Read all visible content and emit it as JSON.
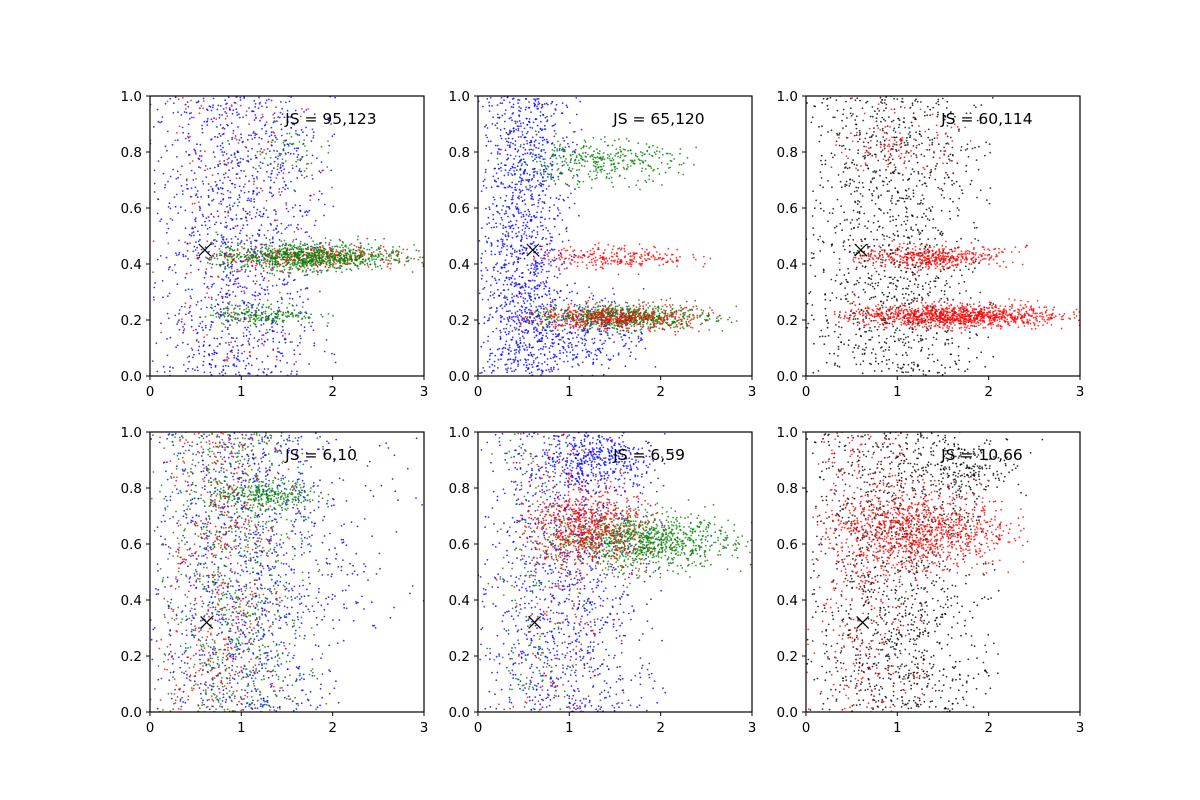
{
  "chart_data": [
    {
      "type": "scatter",
      "annotation": "JS = 95,123",
      "xlim": [
        0,
        3
      ],
      "ylim": [
        0,
        1
      ],
      "xticks": [
        "0",
        "1",
        "2",
        "3"
      ],
      "yticks": [
        "0.0",
        "0.2",
        "0.4",
        "0.6",
        "0.8",
        "1.0"
      ],
      "grid": false,
      "marker": {
        "x": 0.6,
        "y": 0.45
      },
      "series": [
        {
          "color": "#0000ff",
          "clusters": [
            {
              "x": [
                0.0,
                1.9
              ],
              "y": [
                0.0,
                1.0
              ],
              "n": 1300
            }
          ]
        },
        {
          "color": "#ff0000",
          "clusters": [
            {
              "x": [
                0.6,
                2.9
              ],
              "y": [
                0.38,
                0.47
              ],
              "n": 300
            },
            {
              "x": [
                0.1,
                1.9
              ],
              "y": [
                0.05,
                1.0
              ],
              "n": 200
            }
          ]
        },
        {
          "color": "#008000",
          "clusters": [
            {
              "x": [
                0.6,
                2.9
              ],
              "y": [
                0.37,
                0.48
              ],
              "n": 900
            },
            {
              "x": [
                0.6,
                1.9
              ],
              "y": [
                0.18,
                0.26
              ],
              "n": 200
            },
            {
              "x": [
                1.0,
                1.9
              ],
              "y": [
                0.7,
                0.9
              ],
              "n": 60
            }
          ]
        }
      ]
    },
    {
      "type": "scatter",
      "annotation": "JS = 65,120",
      "xlim": [
        0,
        3
      ],
      "ylim": [
        0,
        1
      ],
      "xticks": [
        "0",
        "1",
        "2",
        "3"
      ],
      "yticks": [
        "0.0",
        "0.2",
        "0.4",
        "0.6",
        "0.8",
        "1.0"
      ],
      "grid": false,
      "marker": {
        "x": 0.6,
        "y": 0.45
      },
      "series": [
        {
          "color": "#0000ff",
          "clusters": [
            {
              "x": [
                0.0,
                1.0
              ],
              "y": [
                0.0,
                1.0
              ],
              "n": 1400
            },
            {
              "x": [
                0.6,
                1.9
              ],
              "y": [
                0.0,
                0.3
              ],
              "n": 250
            }
          ]
        },
        {
          "color": "#008000",
          "clusters": [
            {
              "x": [
                0.3,
                2.3
              ],
              "y": [
                0.68,
                0.85
              ],
              "n": 350
            },
            {
              "x": [
                0.5,
                2.7
              ],
              "y": [
                0.16,
                0.26
              ],
              "n": 700
            }
          ]
        },
        {
          "color": "#ff0000",
          "clusters": [
            {
              "x": [
                0.6,
                2.4
              ],
              "y": [
                0.38,
                0.47
              ],
              "n": 250
            },
            {
              "x": [
                0.5,
                2.5
              ],
              "y": [
                0.16,
                0.26
              ],
              "n": 500
            }
          ]
        }
      ]
    },
    {
      "type": "scatter",
      "annotation": "JS = 60,114",
      "xlim": [
        0,
        3
      ],
      "ylim": [
        0,
        1
      ],
      "xticks": [
        "0",
        "1",
        "2",
        "3"
      ],
      "yticks": [
        "0.0",
        "0.2",
        "0.4",
        "0.6",
        "0.8",
        "1.0"
      ],
      "grid": false,
      "marker": {
        "x": 0.6,
        "y": 0.45
      },
      "series": [
        {
          "color": "#000000",
          "clusters": [
            {
              "x": [
                0.0,
                1.9
              ],
              "y": [
                0.0,
                1.0
              ],
              "n": 1300
            }
          ]
        },
        {
          "color": "#ff0000",
          "clusters": [
            {
              "x": [
                0.5,
                2.3
              ],
              "y": [
                0.38,
                0.47
              ],
              "n": 450
            },
            {
              "x": [
                0.4,
                2.9
              ],
              "y": [
                0.17,
                0.26
              ],
              "n": 1100
            },
            {
              "x": [
                0.3,
                1.7
              ],
              "y": [
                0.7,
                0.95
              ],
              "n": 120
            }
          ]
        }
      ]
    },
    {
      "type": "scatter",
      "annotation": "JS = 6,10",
      "xlim": [
        0,
        3
      ],
      "ylim": [
        0,
        1
      ],
      "xticks": [
        "0",
        "1",
        "2",
        "3"
      ],
      "yticks": [
        "0.0",
        "0.2",
        "0.4",
        "0.6",
        "0.8",
        "1.0"
      ],
      "grid": false,
      "marker": {
        "x": 0.62,
        "y": 0.32
      },
      "series": [
        {
          "color": "#0000ff",
          "clusters": [
            {
              "x": [
                0.0,
                2.0
              ],
              "y": [
                0.0,
                1.0
              ],
              "n": 1100
            },
            {
              "x": [
                1.0,
                2.9
              ],
              "y": [
                0.3,
                1.0
              ],
              "n": 150
            }
          ]
        },
        {
          "color": "#008000",
          "clusters": [
            {
              "x": [
                0.1,
                1.8
              ],
              "y": [
                0.0,
                1.0
              ],
              "n": 900
            },
            {
              "x": [
                0.6,
                1.9
              ],
              "y": [
                0.72,
                0.83
              ],
              "n": 250
            }
          ]
        },
        {
          "color": "#ff0000",
          "clusters": [
            {
              "x": [
                0.1,
                1.5
              ],
              "y": [
                0.0,
                1.0
              ],
              "n": 500
            }
          ]
        }
      ]
    },
    {
      "type": "scatter",
      "annotation": "JS = 6,59",
      "xlim": [
        0,
        3
      ],
      "ylim": [
        0,
        1
      ],
      "xticks": [
        "0",
        "1",
        "2",
        "3"
      ],
      "yticks": [
        "0.0",
        "0.2",
        "0.4",
        "0.6",
        "0.8",
        "1.0"
      ],
      "grid": false,
      "marker": {
        "x": 0.62,
        "y": 0.32
      },
      "series": [
        {
          "color": "#0000ff",
          "clusters": [
            {
              "x": [
                0.0,
                1.9
              ],
              "y": [
                0.0,
                1.0
              ],
              "n": 1200
            },
            {
              "x": [
                0.7,
                2.0
              ],
              "y": [
                0.8,
                1.0
              ],
              "n": 300
            }
          ]
        },
        {
          "color": "#008000",
          "clusters": [
            {
              "x": [
                0.7,
                2.9
              ],
              "y": [
                0.5,
                0.72
              ],
              "n": 1000
            },
            {
              "x": [
                0.1,
                1.2
              ],
              "y": [
                0.0,
                1.0
              ],
              "n": 200
            }
          ]
        },
        {
          "color": "#ff0000",
          "clusters": [
            {
              "x": [
                0.5,
                1.9
              ],
              "y": [
                0.5,
                0.82
              ],
              "n": 700
            },
            {
              "x": [
                0.3,
                1.5
              ],
              "y": [
                0.0,
                1.0
              ],
              "n": 200
            }
          ]
        }
      ]
    },
    {
      "type": "scatter",
      "annotation": "JS = 10,66",
      "xlim": [
        0,
        3
      ],
      "ylim": [
        0,
        1
      ],
      "xticks": [
        "0",
        "1",
        "2",
        "3"
      ],
      "yticks": [
        "0.0",
        "0.2",
        "0.4",
        "0.6",
        "0.8",
        "1.0"
      ],
      "grid": false,
      "marker": {
        "x": 0.62,
        "y": 0.32
      },
      "series": [
        {
          "color": "#000000",
          "clusters": [
            {
              "x": [
                0.0,
                2.0
              ],
              "y": [
                0.0,
                1.0
              ],
              "n": 1300
            },
            {
              "x": [
                1.0,
                2.5
              ],
              "y": [
                0.75,
                1.0
              ],
              "n": 200
            }
          ]
        },
        {
          "color": "#ff0000",
          "clusters": [
            {
              "x": [
                0.2,
                2.3
              ],
              "y": [
                0.5,
                0.8
              ],
              "n": 1000
            },
            {
              "x": [
                0.0,
                1.3
              ],
              "y": [
                0.0,
                1.0
              ],
              "n": 400
            }
          ]
        }
      ]
    }
  ]
}
